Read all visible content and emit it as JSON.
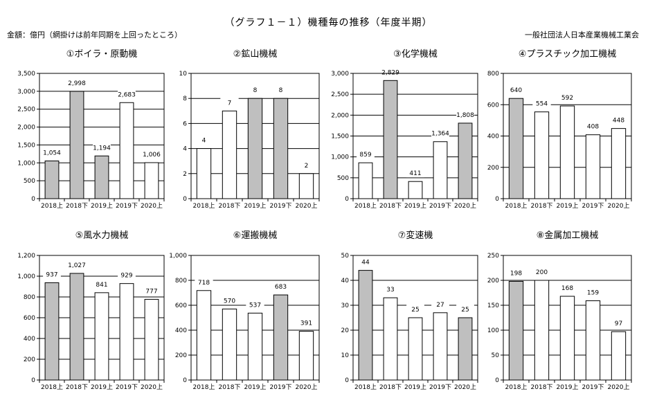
{
  "header": {
    "title": "（グラフ１－１）機種毎の推移（年度半期）",
    "unit_note": "金額：億円（網掛けは前年同期を上回ったところ）",
    "source": "一般社団法人日本産業機械工業会"
  },
  "colors": {
    "shaded": "#bfbfbf",
    "plain": "#ffffff",
    "line": "#000000"
  },
  "chart_data": [
    {
      "type": "bar",
      "title": "①ボイラ・原動機",
      "categories": [
        "2018上",
        "2018下",
        "2019上",
        "2019下",
        "2020上"
      ],
      "values": [
        1054,
        2998,
        1194,
        2683,
        1006
      ],
      "value_labels": [
        "1,054",
        "2,998",
        "1,194",
        "2,683",
        "1,006"
      ],
      "shaded": [
        true,
        true,
        true,
        false,
        false
      ],
      "ylim": [
        0,
        3500
      ],
      "yticks": [
        0,
        500,
        1000,
        1500,
        2000,
        2500,
        3000,
        3500
      ],
      "ytick_labels": [
        "0",
        "500",
        "1,000",
        "1,500",
        "2,000",
        "2,500",
        "3,000",
        "3,500"
      ]
    },
    {
      "type": "bar",
      "title": "②鉱山機械",
      "categories": [
        "2018上",
        "2018下",
        "2019上",
        "2019下",
        "2020上"
      ],
      "values": [
        4,
        7,
        8,
        8,
        2
      ],
      "value_labels": [
        "4",
        "7",
        "8",
        "8",
        "2"
      ],
      "shaded": [
        false,
        false,
        true,
        true,
        false
      ],
      "ylim": [
        0,
        10
      ],
      "yticks": [
        0,
        2,
        4,
        6,
        8,
        10
      ],
      "ytick_labels": [
        "0",
        "2",
        "4",
        "6",
        "8",
        "10"
      ]
    },
    {
      "type": "bar",
      "title": "③化学機械",
      "categories": [
        "2018上",
        "2018下",
        "2019上",
        "2019下",
        "2020上"
      ],
      "values": [
        859,
        2829,
        411,
        1364,
        1808
      ],
      "value_labels": [
        "859",
        "2,829",
        "411",
        "1,364",
        "1,808"
      ],
      "shaded": [
        false,
        true,
        false,
        false,
        true
      ],
      "ylim": [
        0,
        3000
      ],
      "yticks": [
        0,
        500,
        1000,
        1500,
        2000,
        2500,
        3000
      ],
      "ytick_labels": [
        "0",
        "500",
        "1,000",
        "1,500",
        "2,000",
        "2,500",
        "3,000"
      ]
    },
    {
      "type": "bar",
      "title": "④プラスチック加工機械",
      "categories": [
        "2018上",
        "2018下",
        "2019上",
        "2019下",
        "2020上"
      ],
      "values": [
        640,
        554,
        592,
        408,
        448
      ],
      "value_labels": [
        "640",
        "554",
        "592",
        "408",
        "448"
      ],
      "shaded": [
        true,
        false,
        false,
        false,
        false
      ],
      "ylim": [
        0,
        800
      ],
      "yticks": [
        0,
        200,
        400,
        600,
        800
      ],
      "ytick_labels": [
        "0",
        "200",
        "400",
        "600",
        "800"
      ]
    },
    {
      "type": "bar",
      "title": "⑤風水力機械",
      "categories": [
        "2018上",
        "2018下",
        "2019上",
        "2019下",
        "2020上"
      ],
      "values": [
        937,
        1027,
        841,
        929,
        777
      ],
      "value_labels": [
        "937",
        "1,027",
        "841",
        "929",
        "777"
      ],
      "shaded": [
        true,
        true,
        false,
        false,
        false
      ],
      "ylim": [
        0,
        1200
      ],
      "yticks": [
        0,
        200,
        400,
        600,
        800,
        1000,
        1200
      ],
      "ytick_labels": [
        "0",
        "200",
        "400",
        "600",
        "800",
        "1,000",
        "1,200"
      ]
    },
    {
      "type": "bar",
      "title": "⑥運搬機械",
      "categories": [
        "2018上",
        "2018下",
        "2019上",
        "2019下",
        "2020上"
      ],
      "values": [
        718,
        570,
        537,
        683,
        391
      ],
      "value_labels": [
        "718",
        "570",
        "537",
        "683",
        "391"
      ],
      "shaded": [
        false,
        false,
        false,
        true,
        false
      ],
      "ylim": [
        0,
        1000
      ],
      "yticks": [
        0,
        200,
        400,
        600,
        800,
        1000
      ],
      "ytick_labels": [
        "0",
        "200",
        "400",
        "600",
        "800",
        "1,000"
      ]
    },
    {
      "type": "bar",
      "title": "⑦変速機",
      "categories": [
        "2018上",
        "2018下",
        "2019上",
        "2019下",
        "2020上"
      ],
      "values": [
        44,
        33,
        25,
        27,
        25
      ],
      "value_labels": [
        "44",
        "33",
        "25",
        "27",
        "25"
      ],
      "shaded": [
        true,
        false,
        false,
        false,
        true
      ],
      "ylim": [
        0,
        50
      ],
      "yticks": [
        0,
        10,
        20,
        30,
        40,
        50
      ],
      "ytick_labels": [
        "0",
        "10",
        "20",
        "30",
        "40",
        "50"
      ]
    },
    {
      "type": "bar",
      "title": "⑧金属加工機械",
      "categories": [
        "2018上",
        "2018下",
        "2019上",
        "2019下",
        "2020上"
      ],
      "values": [
        198,
        200,
        168,
        159,
        97
      ],
      "value_labels": [
        "198",
        "200",
        "168",
        "159",
        "97"
      ],
      "shaded": [
        true,
        false,
        false,
        false,
        false
      ],
      "ylim": [
        0,
        250
      ],
      "yticks": [
        0,
        50,
        100,
        150,
        200,
        250
      ],
      "ytick_labels": [
        "0",
        "50",
        "100",
        "150",
        "200",
        "250"
      ]
    }
  ]
}
